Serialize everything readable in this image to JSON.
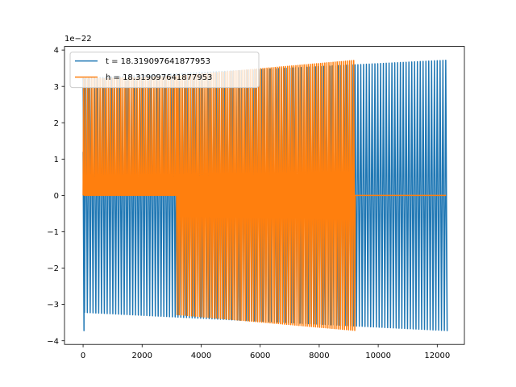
{
  "chart_data": {
    "type": "line",
    "title": "",
    "xlabel": "",
    "ylabel": "",
    "y_offset_label": "1e−22",
    "y_scale_exponent": -22,
    "xlim": [
      -630,
      12920
    ],
    "ylim": [
      -4.1,
      4.1
    ],
    "x_ticks": [
      0,
      2000,
      4000,
      6000,
      8000,
      10000,
      12000
    ],
    "x_tick_labels": [
      "0",
      "2000",
      "4000",
      "6000",
      "8000",
      "10000",
      "12000"
    ],
    "y_ticks": [
      -4,
      -3,
      -2,
      -1,
      0,
      1,
      2,
      3,
      4
    ],
    "y_tick_labels": [
      "−4",
      "−3",
      "−2",
      "−1",
      "0",
      "1",
      "2",
      "3",
      "4"
    ],
    "grid": false,
    "legend_position": "upper-left",
    "series": [
      {
        "name": "t = 18.319097641877953",
        "color": "#1f77b4",
        "x_start": 0,
        "x_end": 12300,
        "period": 96,
        "amplitude_start": 3.22,
        "amplitude_end": 3.72,
        "segments": [
          {
            "x_start": 0,
            "x_end": 12300,
            "amplitude_start": 3.22,
            "amplitude_end": 3.72
          }
        ],
        "initial_spike": -3.72
      },
      {
        "name": "h = 18.319097641877953",
        "color": "#ff7f0e",
        "x_start": 0,
        "x_end": 12300,
        "period": 70,
        "segments": [
          {
            "x_start": 0,
            "x_end": 3150,
            "amplitude_start": 3.2,
            "amplitude_end": 3.28,
            "duty": 0.5
          },
          {
            "x_start": 3150,
            "x_end": 9220,
            "amplitude_start": 3.28,
            "amplitude_end": 3.72
          },
          {
            "x_start": 9220,
            "x_end": 12300,
            "amplitude_start": 0,
            "amplitude_end": 0
          }
        ]
      }
    ]
  }
}
